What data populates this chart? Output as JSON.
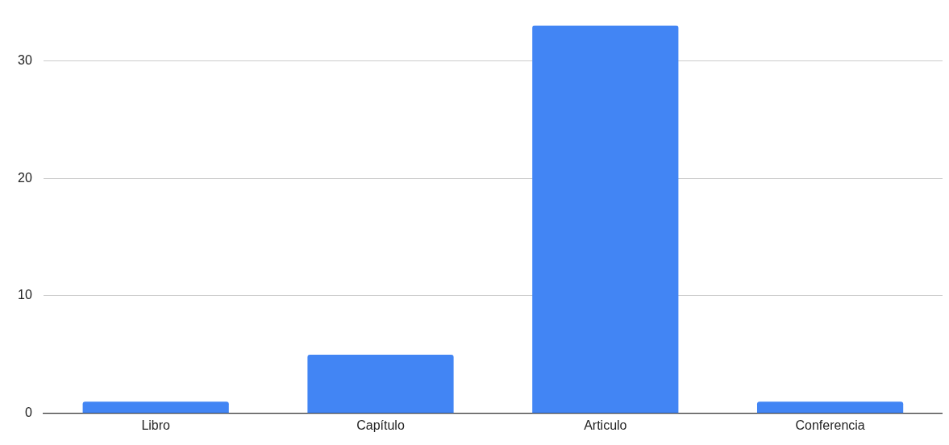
{
  "chart_data": {
    "type": "bar",
    "categories": [
      "Libro",
      "Capítulo",
      "Articulo",
      "Conferencia"
    ],
    "values": [
      1,
      5,
      33,
      1
    ],
    "color": "#4285f4",
    "ylim": [
      0,
      33
    ],
    "yticks": [
      0,
      10,
      20,
      30
    ],
    "grid": "y",
    "legend": false
  }
}
